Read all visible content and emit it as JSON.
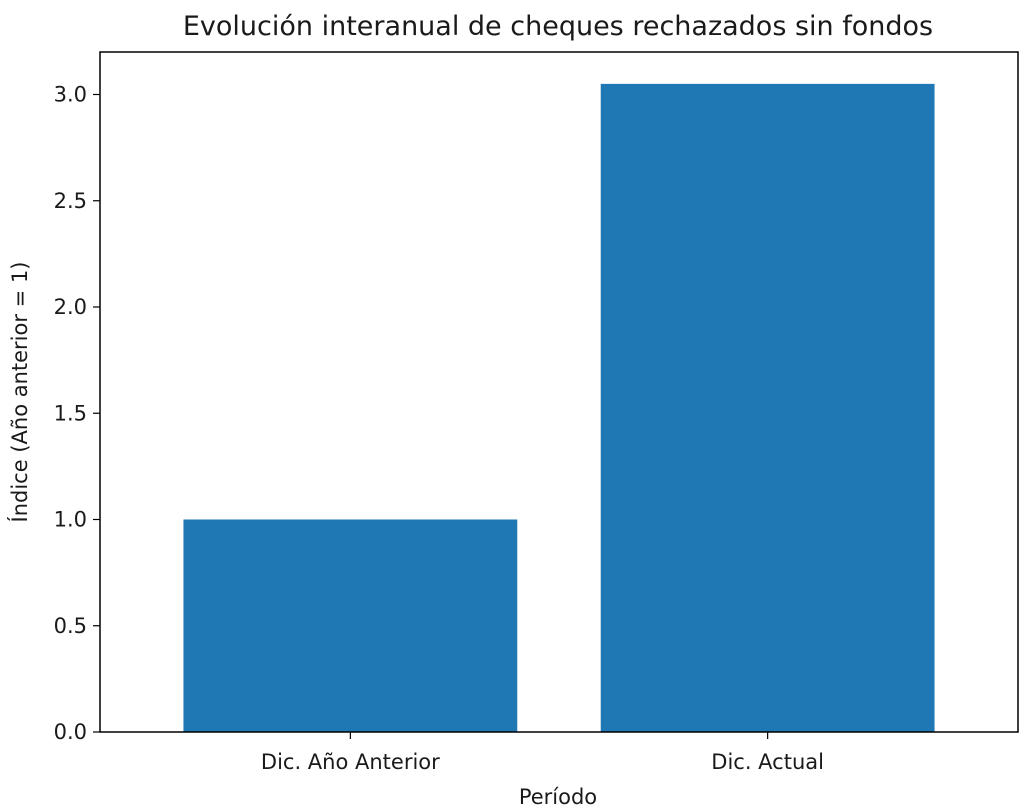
{
  "chart_data": {
    "type": "bar",
    "title": "Evolución interanual de cheques rechazados sin fondos",
    "xlabel": "Período",
    "ylabel": "Índice (Año anterior = 1)",
    "categories": [
      "Dic. Año Anterior",
      "Dic. Actual"
    ],
    "values": [
      1.0,
      3.05
    ],
    "ylim": [
      0,
      3.2
    ],
    "yticks": [
      0.0,
      0.5,
      1.0,
      1.5,
      2.0,
      2.5,
      3.0
    ],
    "ytick_labels": [
      "0.0",
      "0.5",
      "1.0",
      "1.5",
      "2.0",
      "2.5",
      "3.0"
    ],
    "bar_color": "#1f77b4",
    "grid": false,
    "legend": "none"
  }
}
